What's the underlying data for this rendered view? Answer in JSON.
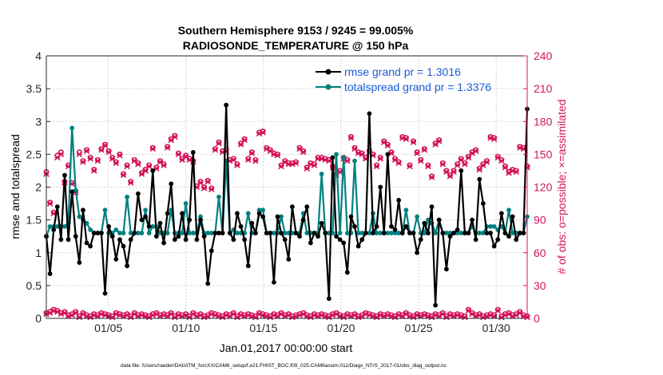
{
  "chart_data": {
    "type": "line",
    "title": "Southern Hemisphere 9153 / 9245 = 99.005%",
    "subtitle": "RADIOSONDE_TEMPERATURE @ 150 hPa",
    "xlabel": "Jan.01,2017 00:00:00 start",
    "ylabel_left": "rmse and totalspread",
    "ylabel_right": "# of obs: o=possible; ×=assimilated",
    "footnote": "data file: /Users/raeder/DAI/ATM_forcXX/CAM6_setup/f.e21.FHIST_BGC.f09_025.CAM6assim.011/Diags_NTrS_2017-01/obs_diag_output.nc",
    "x_ticks": [
      5,
      10,
      15,
      20,
      25,
      30
    ],
    "x_tick_labels": [
      "01/05",
      "01/10",
      "01/15",
      "01/20",
      "01/25",
      "01/30"
    ],
    "xlim": [
      1,
      32
    ],
    "ylim_left": [
      0,
      4
    ],
    "y_ticks_left": [
      "0",
      "0.5",
      "1",
      "1.5",
      "2",
      "2.5",
      "3",
      "3.5",
      "4"
    ],
    "ylim_right": [
      0,
      240
    ],
    "y_ticks_right": [
      "0",
      "30",
      "60",
      "90",
      "120",
      "150",
      "180",
      "210",
      "240"
    ],
    "colors": {
      "rmse": "#000000",
      "spread": "#008080",
      "obs": "#d4145a",
      "legend_text": "#1a5cd6"
    },
    "series": [
      {
        "name": "rmse grand pr = 1.3016",
        "axis": "left",
        "values": [
          1.25,
          0.68,
          1.35,
          1.7,
          1.2,
          2.18,
          1.2,
          1.93,
          1.25,
          0.85,
          1.65,
          1.15,
          1.1,
          1.3,
          1.3,
          1.3,
          0.38,
          1.4,
          1.25,
          0.9,
          1.2,
          1.1,
          0.8,
          1.2,
          1.3,
          1.9,
          1.5,
          1.55,
          1.4,
          2.25,
          1.25,
          1.45,
          1.15,
          1.6,
          2.05,
          1.2,
          1.25,
          1.6,
          1.2,
          1.5,
          2.53,
          1.2,
          1.5,
          1.25,
          0.53,
          1.03,
          1.3,
          1.3,
          1.3,
          3.25,
          1.3,
          1.2,
          1.6,
          1.4,
          1.2,
          0.8,
          1.45,
          1.3,
          1.6,
          1.55,
          1.3,
          1.3,
          0.55,
          1.55,
          1.3,
          1.2,
          0.9,
          1.7,
          1.3,
          1.25,
          1.5,
          1.7,
          1.15,
          1.3,
          1.25,
          1.45,
          1.3,
          0.3,
          2.45,
          1.25,
          1.2,
          1.15,
          0.7,
          1.55,
          1.4,
          1.1,
          1.2,
          1.3,
          3.12,
          1.3,
          1.4,
          2.0,
          1.3,
          2.5,
          1.4,
          1.35,
          1.8,
          1.3,
          1.4,
          1.3,
          1.3,
          1.0,
          1.2,
          1.45,
          1.3,
          1.7,
          0.2,
          1.5,
          1.3,
          0.75,
          1.25,
          1.3,
          1.35,
          2.25,
          1.3,
          1.3,
          1.5,
          1.2,
          2.12,
          1.75,
          1.3,
          1.3,
          1.1,
          1.2,
          1.6,
          1.3,
          1.25,
          1.55,
          1.2,
          1.3,
          1.3,
          3.19
        ]
      },
      {
        "name": "totalspread grand pr = 1.3376",
        "axis": "left",
        "values": [
          1.25,
          1.4,
          1.4,
          1.4,
          1.4,
          1.4,
          1.45,
          2.9,
          1.95,
          1.55,
          1.5,
          1.45,
          1.35,
          1.3,
          1.3,
          1.3,
          1.65,
          1.3,
          1.3,
          1.35,
          1.3,
          1.3,
          1.85,
          1.3,
          1.3,
          1.3,
          1.3,
          1.65,
          1.3,
          1.4,
          1.4,
          1.3,
          1.3,
          1.3,
          1.65,
          1.3,
          1.3,
          1.3,
          1.75,
          1.3,
          1.3,
          1.3,
          1.55,
          1.3,
          1.3,
          1.3,
          1.3,
          1.85,
          1.3,
          2.4,
          1.3,
          1.35,
          1.3,
          1.3,
          1.3,
          1.6,
          1.3,
          1.3,
          1.65,
          1.65,
          1.3,
          1.3,
          1.3,
          1.3,
          1.55,
          1.3,
          1.3,
          1.3,
          1.3,
          1.3,
          1.6,
          1.3,
          1.3,
          1.3,
          1.3,
          2.2,
          1.3,
          1.3,
          1.3,
          2.5,
          1.3,
          2.45,
          1.3,
          1.3,
          2.4,
          1.3,
          1.3,
          1.3,
          1.3,
          1.6,
          1.3,
          1.3,
          1.3,
          1.3,
          1.3,
          1.3,
          1.3,
          1.3,
          1.65,
          1.3,
          1.3,
          1.55,
          1.3,
          1.3,
          1.5,
          1.45,
          1.3,
          1.5,
          1.3,
          1.3,
          1.3,
          1.3,
          1.3,
          1.3,
          1.3,
          1.3,
          1.4,
          1.3,
          1.3,
          1.3,
          1.4,
          1.4,
          1.4,
          1.35,
          1.4,
          1.3,
          1.65,
          1.3,
          1.3,
          1.3,
          1.3,
          1.55
        ]
      }
    ],
    "obs_possible": [
      134,
      106,
      97,
      149,
      152,
      125,
      140,
      124,
      116,
      152,
      144,
      154,
      147,
      136,
      145,
      155,
      159,
      153,
      147,
      143,
      150,
      132,
      140,
      125,
      145,
      142,
      133,
      136,
      140,
      156,
      138,
      144,
      141,
      157,
      164,
      167,
      151,
      146,
      149,
      146,
      144,
      121,
      125,
      120,
      126,
      119,
      155,
      161,
      153,
      154,
      145,
      146,
      141,
      160,
      164,
      146,
      152,
      145,
      170,
      171,
      156,
      154,
      151,
      150,
      140,
      144,
      142,
      142,
      143,
      156,
      153,
      138,
      142,
      141,
      147,
      147,
      146,
      145,
      139,
      132,
      135,
      147,
      145,
      166,
      156,
      152,
      151,
      147,
      153,
      150,
      140,
      147,
      162,
      159,
      152,
      146,
      143,
      166,
      165,
      140,
      162,
      152,
      145,
      155,
      140,
      130,
      160,
      163,
      142,
      135,
      131,
      135,
      141,
      146,
      142,
      148,
      152,
      154,
      137,
      141,
      144,
      166,
      165,
      148,
      145,
      139,
      134,
      136,
      135,
      157,
      156,
      139
    ],
    "obs_assimilated": [
      132,
      105,
      96,
      147,
      150,
      124,
      139,
      123,
      115,
      150,
      143,
      153,
      146,
      135,
      144,
      154,
      158,
      152,
      146,
      142,
      149,
      131,
      139,
      124,
      144,
      141,
      132,
      135,
      139,
      155,
      137,
      143,
      140,
      156,
      163,
      166,
      150,
      145,
      148,
      145,
      143,
      120,
      124,
      119,
      125,
      118,
      154,
      160,
      152,
      153,
      144,
      145,
      140,
      159,
      163,
      145,
      151,
      144,
      169,
      170,
      155,
      153,
      150,
      149,
      139,
      143,
      141,
      141,
      142,
      155,
      152,
      137,
      141,
      140,
      146,
      146,
      145,
      144,
      138,
      131,
      134,
      146,
      144,
      165,
      155,
      151,
      150,
      146,
      152,
      149,
      139,
      146,
      161,
      158,
      151,
      145,
      142,
      165,
      164,
      139,
      161,
      151,
      144,
      154,
      139,
      129,
      159,
      162,
      141,
      134,
      130,
      134,
      140,
      145,
      141,
      147,
      151,
      153,
      136,
      140,
      143,
      165,
      164,
      147,
      144,
      138,
      133,
      135,
      134,
      156,
      155,
      138
    ],
    "obs_low_possible": [
      5,
      6,
      8,
      7,
      5,
      6,
      3,
      4,
      6,
      2,
      5,
      3,
      2,
      4,
      3,
      5,
      4,
      3,
      2,
      5,
      4,
      3,
      4,
      2,
      5,
      3,
      4,
      3,
      2,
      4,
      5,
      3,
      4,
      3,
      5,
      2,
      4,
      3,
      4,
      2,
      5,
      3,
      4,
      2,
      3,
      5,
      4,
      3,
      2,
      4,
      3,
      5,
      2,
      4,
      3,
      4,
      3,
      2,
      5,
      4,
      3,
      2,
      4,
      3,
      5,
      3,
      4,
      2,
      3,
      4,
      5,
      3,
      2,
      4,
      3,
      4,
      3,
      2,
      4,
      5,
      3,
      2,
      4,
      3,
      4,
      2,
      3,
      5,
      4,
      3,
      2,
      4,
      3,
      4,
      3,
      2,
      4,
      3,
      5,
      3,
      2,
      4,
      3,
      4,
      3,
      2,
      4,
      3,
      5,
      2,
      4,
      3,
      4,
      3,
      2,
      8,
      5,
      3,
      4,
      2,
      3,
      4,
      3,
      8,
      2,
      4,
      5,
      3,
      4,
      6,
      3,
      2
    ],
    "obs_low_assimilated": [
      4,
      5,
      7,
      6,
      4,
      5,
      2,
      3,
      5,
      1,
      4,
      2,
      1,
      3,
      2,
      4,
      3,
      2,
      1,
      4,
      3,
      2,
      3,
      1,
      4,
      2,
      3,
      2,
      1,
      3,
      4,
      2,
      3,
      2,
      4,
      1,
      3,
      2,
      3,
      1,
      4,
      2,
      3,
      1,
      2,
      4,
      3,
      2,
      1,
      3,
      2,
      4,
      1,
      3,
      2,
      3,
      2,
      1,
      4,
      3,
      2,
      1,
      3,
      2,
      4,
      2,
      3,
      1,
      2,
      3,
      4,
      2,
      1,
      3,
      2,
      3,
      2,
      1,
      3,
      4,
      2,
      1,
      3,
      2,
      3,
      1,
      2,
      4,
      3,
      2,
      1,
      3,
      2,
      3,
      2,
      1,
      3,
      2,
      4,
      2,
      1,
      3,
      2,
      3,
      2,
      1,
      3,
      2,
      4,
      1,
      3,
      2,
      3,
      2,
      1,
      7,
      4,
      2,
      3,
      1,
      2,
      3,
      2,
      7,
      1,
      3,
      4,
      2,
      3,
      5,
      2,
      1
    ]
  }
}
